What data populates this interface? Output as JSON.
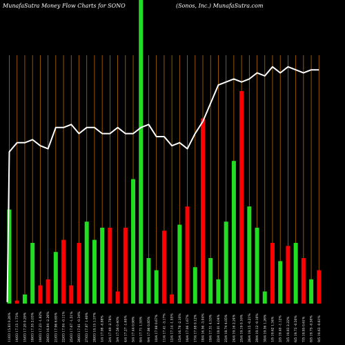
{
  "chart_data": {
    "type": "bar",
    "title": "MunafaSutra  Money Flow  Charts for SONO",
    "subtitle": "(Sonos,  Inc.) MunafaSutra.com",
    "ylim": [
      0,
      100
    ],
    "grid": true,
    "categories": [
      "11/03 15.83 0.26%",
      "14/03 17.15 1.73%",
      "15/03 17.20 0.29%",
      "18/03 17.55 2.03%",
      "19/03 17.23 -1.82%",
      "20/03 16.84 -2.26%",
      "21/03 17.96 6.65%",
      "22/03 17.94 -0.11%",
      "25/03 17.67 -1.51%",
      "26/03 17.61 -0.34%",
      "27/03 17.87 1.48%",
      "28/03 18.15 1.57%",
      "1/4 17.99 -0.88%",
      "2/4 17.49 -2.78%",
      "3/4 17.56 0.40%",
      "4/4 17.27 -1.65%",
      "5/4 17.44 0.98%",
      "8/4 17.71 1.55%",
      "9/4 17.86 0.85%",
      "10/4 17.98 0.67%",
      "11/4 17.41 -3.17%",
      "12/4 17.14 -1.55%",
      "15/4 16.78 -2.10%",
      "16/4 17.06 1.67%",
      "17/4 17.08 0.12%",
      "18/4 16.56 -3.04%",
      "19/4 17.31 4.53%",
      "22/4 18.01 4.04%",
      "23/4 18.74 4.05%",
      "24/4 19.16 2.24%",
      "25/4 19.19 0.16%",
      "26/4 19.15 -0.21%",
      "29/4 19.12 -0.16%",
      "30/4 19.36 1.26%",
      "1/5 19.62 1.34%",
      "2/5 19.40 -1.12%",
      "3/5 19.83 2.22%",
      "6/5 19.73 -0.50%",
      "7/5 19.85 0.61%",
      "8/5 19.75 -0.50%",
      "9/5 19.63 -0.61%"
    ],
    "series": [
      {
        "colors": [
          "green",
          "red",
          "green",
          "green",
          "red",
          "red",
          "green",
          "red",
          "red",
          "red",
          "green",
          "green",
          "green",
          "red",
          "red",
          "red",
          "green",
          "green",
          "green",
          "green",
          "red",
          "red",
          "green",
          "red",
          "green",
          "red",
          "green",
          "green",
          "green",
          "green",
          "red",
          "green",
          "green",
          "green",
          "red",
          "green",
          "red",
          "green",
          "red",
          "green",
          "red"
        ],
        "values": [
          31,
          1,
          3,
          20,
          6,
          8,
          17,
          21,
          6,
          20,
          27,
          21,
          25,
          25,
          4,
          25,
          41,
          100,
          15,
          11,
          24,
          3,
          26,
          32,
          12,
          61,
          15,
          8,
          27,
          47,
          70,
          32,
          25,
          4,
          20,
          14,
          19,
          20,
          15,
          8,
          11
        ]
      },
      {
        "type": "line",
        "values": [
          50,
          53,
          53,
          54,
          52,
          51,
          58,
          58,
          59,
          56,
          58,
          58,
          56,
          56,
          58,
          56,
          56,
          58,
          59,
          55,
          55,
          52,
          53,
          51,
          56,
          60,
          66,
          72,
          73,
          74,
          73,
          74,
          76,
          75,
          78,
          76,
          78,
          77,
          76,
          77,
          77
        ]
      }
    ]
  },
  "colors": {
    "background": "#000000",
    "grid": "#b86e00",
    "up": "#22dd22",
    "down": "#ff0000",
    "line": "#ffffff",
    "text": "#ffffff"
  }
}
